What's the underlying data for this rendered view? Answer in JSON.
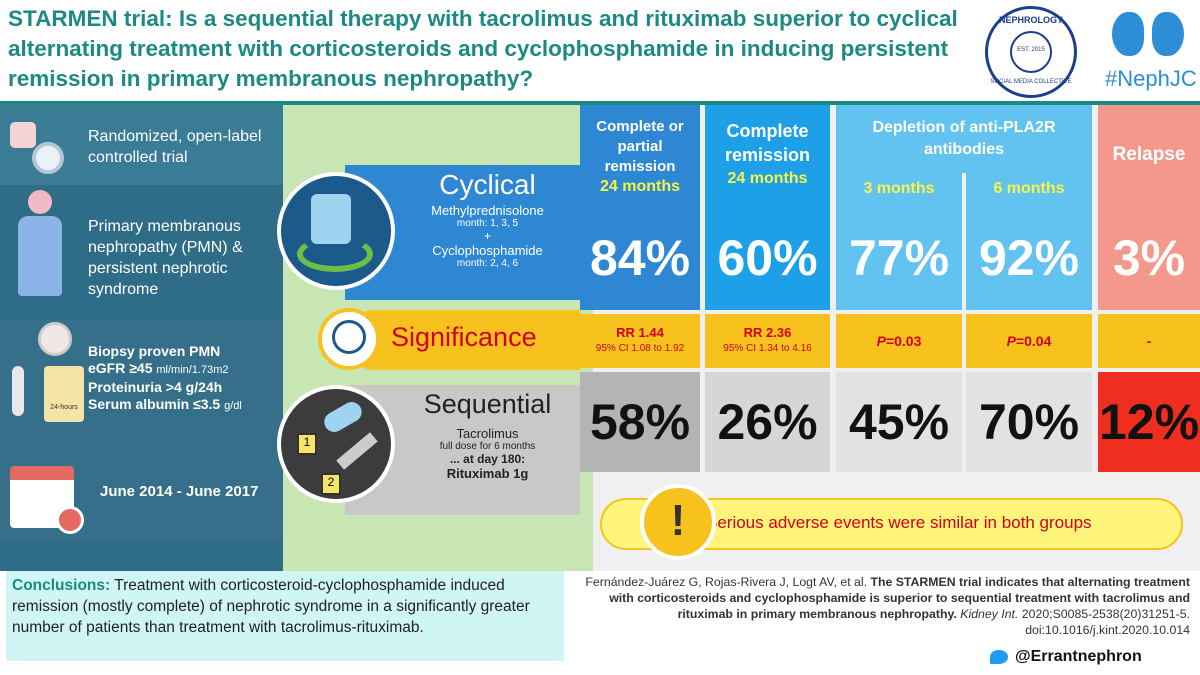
{
  "title": "STARMEN trial: Is a sequential therapy with tacrolimus and rituximab superior to cyclical alternating treatment with corticosteroids and cyclophosphamide in inducing persistent remission in primary membranous nephropathy?",
  "logo": {
    "top": "NEPHROLOGY",
    "bottom": "SOCIAL MEDIA COLLECTIVE",
    "est": "EST. 2015"
  },
  "nephjc": "#NephJC",
  "left": {
    "design": "Randomized, open-label controlled trial",
    "population": "Primary membranous nephropathy (PMN) & persistent nephrotic syndrome",
    "criteria": [
      "Biopsy proven PMN",
      "eGFR ≥45",
      "ml/min/1.73m2",
      "Proteinuria >4 g/24h",
      "Serum albumin ≤3.5",
      "g/dl"
    ],
    "jug_label": "24-hours",
    "dates": "June 2014 - June 2017"
  },
  "cyclical": {
    "label": "Cyclical",
    "drug1": "Methylprednisolone",
    "drug1_sched": "month: 1, 3, 5",
    "plus": "+",
    "drug2": "Cyclophosphamide",
    "drug2_sched": "month: 2, 4, 6"
  },
  "significance": {
    "label": "Significance"
  },
  "sequential": {
    "label": "Sequential",
    "drug1": "Tacrolimus",
    "drug1_sched": "full dose for 6 months",
    "drug2_intro": "... at day 180:",
    "drug2": "Rituximab 1g",
    "step1": "1",
    "step2": "2"
  },
  "headers": {
    "c1": "Complete or partial remission",
    "c1_time": "24 months",
    "c2": "Complete remission",
    "c2_time": "24 months",
    "c3": "Depletion of anti-PLA2R antibodies",
    "c3_time": "3 months",
    "c4_time": "6 months",
    "c5": "Relapse"
  },
  "cyclical_values": [
    "84%",
    "60%",
    "77%",
    "92%",
    "3%"
  ],
  "sequential_values": [
    "58%",
    "26%",
    "45%",
    "70%",
    "12%"
  ],
  "sig_values": {
    "c1_rr": "RR 1.44",
    "c1_ci": "95% CI 1.08 to 1.92",
    "c2_rr": "RR 2.36",
    "c2_ci": "95% CI 1.34 to 4.16",
    "c3_p": "P",
    "c3_v": "=0.03",
    "c4_p": "P",
    "c4_v": "=0.04",
    "c5": "-"
  },
  "adverse": "Serious adverse events were similar in both groups",
  "adverse_icon": "!",
  "conclusion_label": "Conclusions:",
  "conclusion": " Treatment with corticosteroid-cyclophosphamide induced remission (mostly complete) of nephrotic syndrome in a significantly greater number of patients than treatment with tacrolimus-rituximab.",
  "reference": {
    "authors": "Fernández-Juárez G, Rojas-Rivera J, Logt AV, et al.",
    "title": "The STARMEN trial indicates that alternating treatment with corticosteroids and cyclophosphamide is superior to sequential treatment with tacrolimus and rituximab in primary membranous nephropathy.",
    "journal": "Kidney Int.",
    "rest": "2020;S0085-2538(20)31251-5. doi:10.1016/j.kint.2020.10.014"
  },
  "twitter": "@Errantnephron"
}
